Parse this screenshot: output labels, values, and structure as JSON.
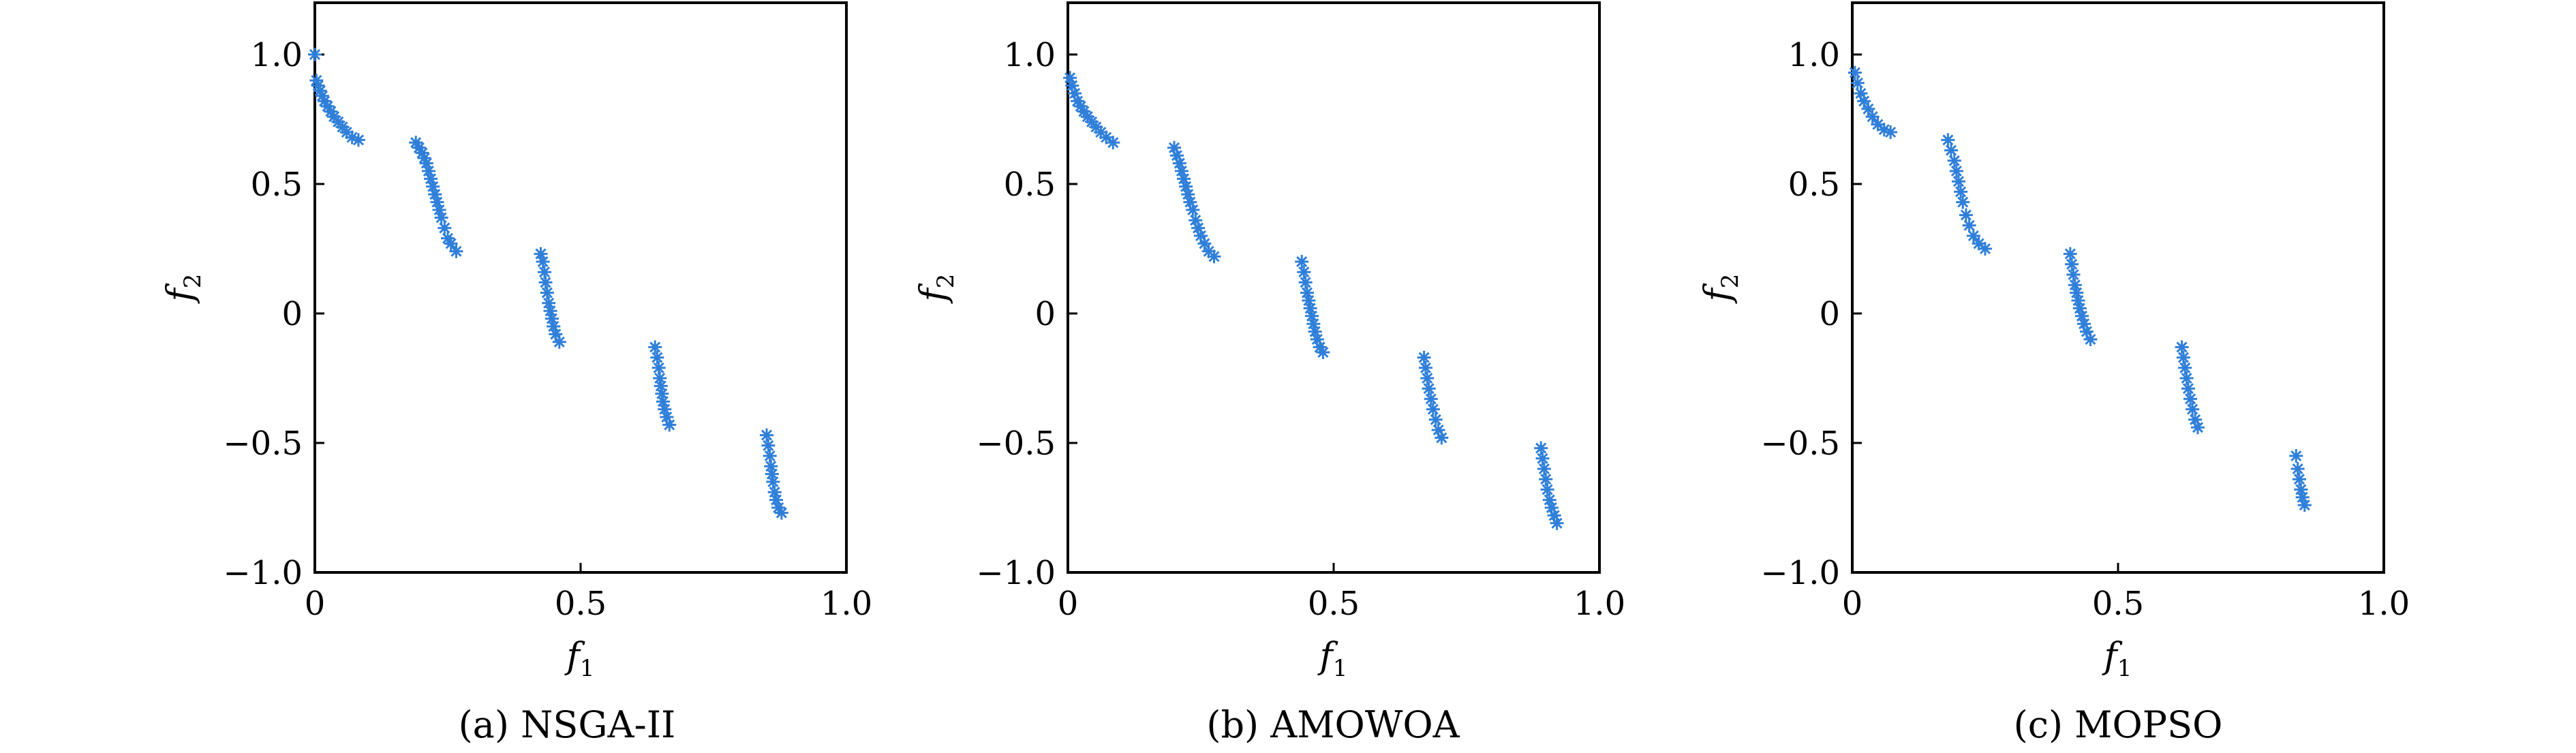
{
  "figure": {
    "panels": [
      {
        "title": "(a) NSGA-II"
      },
      {
        "title": "(b) AMOWOA"
      },
      {
        "title": "(c) MOPSO"
      }
    ]
  },
  "chart_data": [
    {
      "type": "scatter",
      "title": "(a) NSGA-II",
      "xlabel": "f1",
      "ylabel": "f2",
      "xlim": [
        0,
        1.0
      ],
      "ylim": [
        -1.0,
        1.2
      ],
      "xticks": [
        "0",
        "0.5",
        "1.0"
      ],
      "yticks": [
        "−1.0",
        "−0.5",
        "0",
        "0.5",
        "1.0"
      ],
      "grid": false,
      "marker": "*",
      "color": "#2f7fd9",
      "points": [
        [
          0.0,
          1.0
        ],
        [
          0.003,
          0.9
        ],
        [
          0.006,
          0.88
        ],
        [
          0.01,
          0.86
        ],
        [
          0.014,
          0.84
        ],
        [
          0.018,
          0.82
        ],
        [
          0.024,
          0.8
        ],
        [
          0.03,
          0.78
        ],
        [
          0.036,
          0.76
        ],
        [
          0.044,
          0.74
        ],
        [
          0.052,
          0.72
        ],
        [
          0.06,
          0.7
        ],
        [
          0.07,
          0.68
        ],
        [
          0.082,
          0.67
        ],
        [
          0.19,
          0.66
        ],
        [
          0.196,
          0.64
        ],
        [
          0.202,
          0.62
        ],
        [
          0.206,
          0.6
        ],
        [
          0.21,
          0.58
        ],
        [
          0.214,
          0.55
        ],
        [
          0.218,
          0.52
        ],
        [
          0.222,
          0.49
        ],
        [
          0.226,
          0.46
        ],
        [
          0.23,
          0.43
        ],
        [
          0.234,
          0.4
        ],
        [
          0.238,
          0.37
        ],
        [
          0.244,
          0.33
        ],
        [
          0.25,
          0.29
        ],
        [
          0.256,
          0.27
        ],
        [
          0.266,
          0.24
        ],
        [
          0.425,
          0.23
        ],
        [
          0.429,
          0.2
        ],
        [
          0.432,
          0.16
        ],
        [
          0.434,
          0.12
        ],
        [
          0.437,
          0.08
        ],
        [
          0.44,
          0.04
        ],
        [
          0.443,
          0.01
        ],
        [
          0.446,
          -0.02
        ],
        [
          0.449,
          -0.05
        ],
        [
          0.453,
          -0.08
        ],
        [
          0.46,
          -0.11
        ],
        [
          0.64,
          -0.13
        ],
        [
          0.644,
          -0.17
        ],
        [
          0.647,
          -0.21
        ],
        [
          0.649,
          -0.25
        ],
        [
          0.651,
          -0.28
        ],
        [
          0.653,
          -0.31
        ],
        [
          0.655,
          -0.34
        ],
        [
          0.658,
          -0.37
        ],
        [
          0.662,
          -0.4
        ],
        [
          0.667,
          -0.43
        ],
        [
          0.85,
          -0.47
        ],
        [
          0.853,
          -0.51
        ],
        [
          0.856,
          -0.55
        ],
        [
          0.858,
          -0.59
        ],
        [
          0.86,
          -0.62
        ],
        [
          0.862,
          -0.65
        ],
        [
          0.865,
          -0.69
        ],
        [
          0.868,
          -0.72
        ],
        [
          0.872,
          -0.75
        ],
        [
          0.878,
          -0.77
        ]
      ]
    },
    {
      "type": "scatter",
      "title": "(b) AMOWOA",
      "xlabel": "f1",
      "ylabel": "f2",
      "xlim": [
        0,
        1.0
      ],
      "ylim": [
        -1.0,
        1.2
      ],
      "xticks": [
        "0",
        "0.5",
        "1.0"
      ],
      "yticks": [
        "−1.0",
        "−0.5",
        "0",
        "0.5",
        "1.0"
      ],
      "grid": false,
      "marker": "*",
      "color": "#2f7fd9",
      "points": [
        [
          0.004,
          0.91
        ],
        [
          0.008,
          0.88
        ],
        [
          0.013,
          0.85
        ],
        [
          0.018,
          0.82
        ],
        [
          0.024,
          0.8
        ],
        [
          0.03,
          0.78
        ],
        [
          0.037,
          0.76
        ],
        [
          0.045,
          0.74
        ],
        [
          0.053,
          0.72
        ],
        [
          0.062,
          0.7
        ],
        [
          0.072,
          0.68
        ],
        [
          0.085,
          0.66
        ],
        [
          0.2,
          0.64
        ],
        [
          0.205,
          0.61
        ],
        [
          0.21,
          0.58
        ],
        [
          0.214,
          0.55
        ],
        [
          0.218,
          0.52
        ],
        [
          0.222,
          0.49
        ],
        [
          0.226,
          0.46
        ],
        [
          0.23,
          0.43
        ],
        [
          0.235,
          0.4
        ],
        [
          0.24,
          0.36
        ],
        [
          0.245,
          0.33
        ],
        [
          0.25,
          0.3
        ],
        [
          0.257,
          0.27
        ],
        [
          0.265,
          0.24
        ],
        [
          0.275,
          0.22
        ],
        [
          0.44,
          0.2
        ],
        [
          0.444,
          0.16
        ],
        [
          0.447,
          0.12
        ],
        [
          0.45,
          0.08
        ],
        [
          0.453,
          0.05
        ],
        [
          0.456,
          0.02
        ],
        [
          0.459,
          -0.01
        ],
        [
          0.462,
          -0.04
        ],
        [
          0.465,
          -0.07
        ],
        [
          0.469,
          -0.1
        ],
        [
          0.474,
          -0.13
        ],
        [
          0.48,
          -0.15
        ],
        [
          0.67,
          -0.17
        ],
        [
          0.673,
          -0.21
        ],
        [
          0.676,
          -0.25
        ],
        [
          0.679,
          -0.29
        ],
        [
          0.683,
          -0.33
        ],
        [
          0.687,
          -0.37
        ],
        [
          0.692,
          -0.41
        ],
        [
          0.697,
          -0.45
        ],
        [
          0.703,
          -0.48
        ],
        [
          0.89,
          -0.52
        ],
        [
          0.893,
          -0.56
        ],
        [
          0.896,
          -0.6
        ],
        [
          0.899,
          -0.64
        ],
        [
          0.902,
          -0.68
        ],
        [
          0.906,
          -0.72
        ],
        [
          0.91,
          -0.75
        ],
        [
          0.915,
          -0.78
        ],
        [
          0.92,
          -0.81
        ]
      ]
    },
    {
      "type": "scatter",
      "title": "(c) MOPSO",
      "xlabel": "f1",
      "ylabel": "f2",
      "xlim": [
        0,
        1.0
      ],
      "ylim": [
        -1.0,
        1.2
      ],
      "xticks": [
        "0",
        "0.5",
        "1.0"
      ],
      "yticks": [
        "−1.0",
        "−0.5",
        "0",
        "0.5",
        "1.0"
      ],
      "grid": false,
      "marker": "*",
      "color": "#2f7fd9",
      "points": [
        [
          0.005,
          0.93
        ],
        [
          0.01,
          0.89
        ],
        [
          0.016,
          0.85
        ],
        [
          0.022,
          0.82
        ],
        [
          0.03,
          0.79
        ],
        [
          0.038,
          0.76
        ],
        [
          0.048,
          0.73
        ],
        [
          0.06,
          0.71
        ],
        [
          0.072,
          0.7
        ],
        [
          0.18,
          0.67
        ],
        [
          0.186,
          0.63
        ],
        [
          0.192,
          0.59
        ],
        [
          0.196,
          0.55
        ],
        [
          0.2,
          0.51
        ],
        [
          0.204,
          0.47
        ],
        [
          0.208,
          0.43
        ],
        [
          0.214,
          0.38
        ],
        [
          0.22,
          0.34
        ],
        [
          0.228,
          0.3
        ],
        [
          0.238,
          0.27
        ],
        [
          0.25,
          0.25
        ],
        [
          0.41,
          0.23
        ],
        [
          0.413,
          0.19
        ],
        [
          0.416,
          0.15
        ],
        [
          0.419,
          0.11
        ],
        [
          0.422,
          0.08
        ],
        [
          0.425,
          0.05
        ],
        [
          0.428,
          0.02
        ],
        [
          0.432,
          -0.01
        ],
        [
          0.436,
          -0.04
        ],
        [
          0.441,
          -0.07
        ],
        [
          0.448,
          -0.1
        ],
        [
          0.62,
          -0.13
        ],
        [
          0.623,
          -0.17
        ],
        [
          0.626,
          -0.21
        ],
        [
          0.629,
          -0.25
        ],
        [
          0.632,
          -0.29
        ],
        [
          0.636,
          -0.33
        ],
        [
          0.64,
          -0.37
        ],
        [
          0.645,
          -0.41
        ],
        [
          0.65,
          -0.44
        ],
        [
          0.835,
          -0.55
        ],
        [
          0.838,
          -0.6
        ],
        [
          0.841,
          -0.64
        ],
        [
          0.844,
          -0.68
        ],
        [
          0.847,
          -0.71
        ],
        [
          0.851,
          -0.74
        ]
      ]
    }
  ]
}
